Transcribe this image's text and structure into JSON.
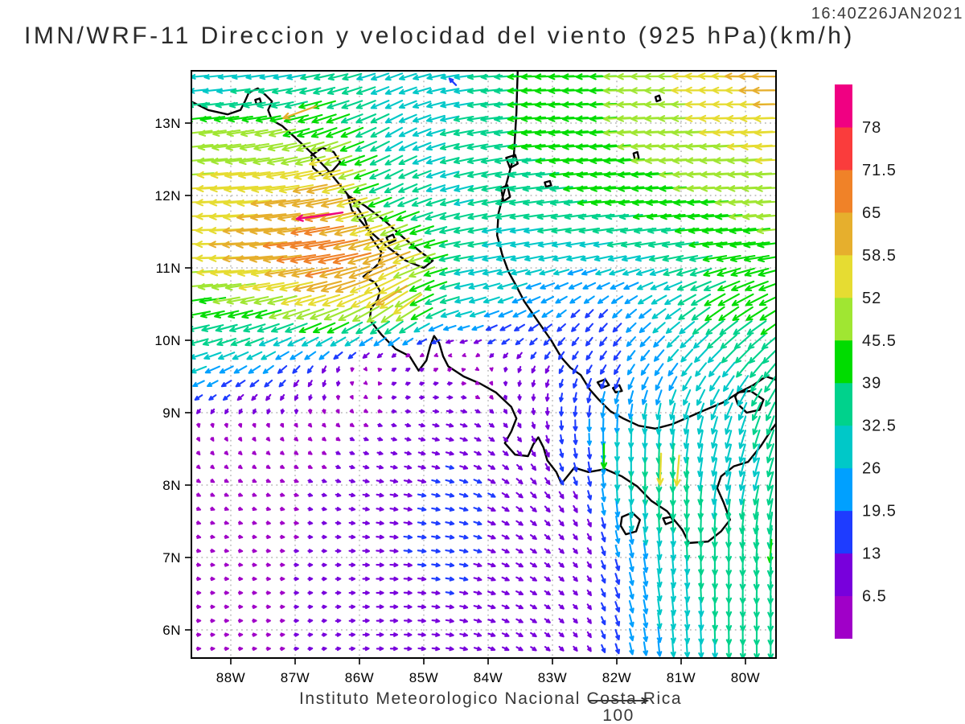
{
  "header": {
    "title": "IMN/WRF-11 Direccion y velocidad del viento (925 hPa)(km/h)",
    "timestamp": "16:40Z26JAN2021"
  },
  "footer": {
    "credit": "Instituto Meteorologico Nacional Costa Rica",
    "reference_label": "100"
  },
  "axes": {
    "x_ticks": [
      {
        "lon": -88,
        "label": "88W"
      },
      {
        "lon": -87,
        "label": "87W"
      },
      {
        "lon": -86,
        "label": "86W"
      },
      {
        "lon": -85,
        "label": "85W"
      },
      {
        "lon": -84,
        "label": "84W"
      },
      {
        "lon": -83,
        "label": "83W"
      },
      {
        "lon": -82,
        "label": "82W"
      },
      {
        "lon": -81,
        "label": "81W"
      },
      {
        "lon": -80,
        "label": "80W"
      }
    ],
    "y_ticks": [
      {
        "lat": 13,
        "label": "13N"
      },
      {
        "lat": 12,
        "label": "12N"
      },
      {
        "lat": 11,
        "label": "11N"
      },
      {
        "lat": 10,
        "label": "10N"
      },
      {
        "lat": 9,
        "label": "9N"
      },
      {
        "lat": 8,
        "label": "8N"
      },
      {
        "lat": 7,
        "label": "7N"
      },
      {
        "lat": 6,
        "label": "6N"
      }
    ]
  },
  "colorbar": {
    "units": "km/h",
    "levels": [
      6.5,
      13,
      19.5,
      26,
      32.5,
      39,
      45.5,
      52,
      58.5,
      65,
      71.5,
      78
    ],
    "level_labels": [
      "6.5",
      "13",
      "19.5",
      "26",
      "32.5",
      "39",
      "45.5",
      "52",
      "58.5",
      "65",
      "71.5",
      "78"
    ],
    "colors": [
      "#A000C8",
      "#7800DC",
      "#1E3CFF",
      "#00A0FF",
      "#00C8C8",
      "#00D28C",
      "#00DC00",
      "#A0E632",
      "#E6DC32",
      "#E6AF2D",
      "#F08228",
      "#FA3C3C",
      "#F00082"
    ]
  },
  "chart_data": {
    "type": "vector_field_map",
    "title": "IMN/WRF-11 Direccion y velocidad del viento (925 hPa)(km/h)",
    "units": "km/h",
    "pressure_level": "925 hPa",
    "lon_range": [
      -88.61,
      -79.53
    ],
    "lat_range": [
      5.61,
      13.72
    ],
    "grid_on": true,
    "reference_vector_kmh": 100,
    "control_grid": {
      "lons": [
        -88.6,
        -87.5,
        -86.5,
        -85.5,
        -84.5,
        -83.5,
        -82.5,
        -82.0,
        -81.3,
        -80.5,
        -79.5
      ],
      "lats": [
        13.7,
        12.8,
        12.0,
        11.2,
        10.4,
        9.6,
        8.8,
        8.0,
        7.2,
        6.4,
        5.6
      ],
      "speed_kmh": [
        [
          26,
          27,
          34,
          30,
          30,
          40,
          44,
          46,
          50,
          56,
          66
        ],
        [
          48,
          48,
          46,
          32,
          33,
          40,
          44,
          46,
          48,
          52,
          54
        ],
        [
          54,
          58,
          62,
          34,
          32,
          34,
          40,
          42,
          44,
          46,
          50
        ],
        [
          56,
          64,
          72,
          60,
          34,
          30,
          30,
          31,
          34,
          40,
          44
        ],
        [
          40,
          45,
          52,
          55,
          30,
          24,
          18,
          20,
          28,
          40,
          42
        ],
        [
          28,
          22,
          12,
          7,
          6,
          10,
          16,
          18,
          24,
          30,
          36
        ],
        [
          6,
          6,
          6,
          7,
          12,
          8,
          20,
          26,
          30,
          30,
          34
        ],
        [
          6,
          6,
          7,
          12,
          14,
          13,
          14,
          30,
          40,
          30,
          33
        ],
        [
          6,
          6,
          7,
          13,
          14,
          12,
          10,
          20,
          30,
          36,
          40
        ],
        [
          6,
          6,
          7,
          12,
          13,
          12,
          9,
          18,
          27,
          34,
          38
        ],
        [
          6,
          6,
          7,
          11,
          12,
          11,
          9,
          17,
          26,
          32,
          36
        ]
      ],
      "direction_to_deg": [
        [
          185,
          188,
          192,
          200,
          188,
          182,
          182,
          181,
          180,
          178,
          180
        ],
        [
          186,
          190,
          200,
          210,
          192,
          186,
          184,
          184,
          183,
          183,
          183
        ],
        [
          182,
          186,
          192,
          205,
          195,
          188,
          186,
          185,
          184,
          183,
          183
        ],
        [
          180,
          185,
          190,
          200,
          190,
          190,
          190,
          190,
          190,
          188,
          188
        ],
        [
          190,
          195,
          200,
          215,
          195,
          205,
          225,
          222,
          215,
          215,
          210
        ],
        [
          200,
          215,
          245,
          30,
          25,
          250,
          240,
          238,
          235,
          230,
          230
        ],
        [
          290,
          300,
          315,
          345,
          345,
          300,
          270,
          268,
          265,
          255,
          250
        ],
        [
          330,
          340,
          345,
          350,
          345,
          320,
          290,
          272,
          270,
          260,
          255
        ],
        [
          350,
          355,
          0,
          355,
          350,
          330,
          305,
          285,
          275,
          270,
          265
        ],
        [
          0,
          0,
          5,
          0,
          350,
          335,
          310,
          290,
          278,
          272,
          268
        ],
        [
          5,
          5,
          10,
          0,
          350,
          330,
          305,
          288,
          275,
          272,
          270
        ]
      ]
    },
    "extra_vectors": [
      {
        "lon": -86.62,
        "lat": 11.72,
        "speed": 80,
        "dir": 188
      },
      {
        "lon": -86.93,
        "lat": 13.15,
        "speed": 60,
        "dir": 200
      },
      {
        "lon": -85.5,
        "lat": 10.62,
        "speed": 62,
        "dir": 212
      },
      {
        "lon": -85.25,
        "lat": 10.5,
        "speed": 58,
        "dir": 215
      },
      {
        "lon": -84.55,
        "lat": 13.57,
        "speed": 16,
        "dir": 135
      },
      {
        "lon": -82.2,
        "lat": 8.4,
        "speed": 42,
        "dir": 270
      },
      {
        "lon": -81.32,
        "lat": 8.22,
        "speed": 54,
        "dir": 268
      },
      {
        "lon": -81.05,
        "lat": 8.2,
        "speed": 52,
        "dir": 265
      }
    ]
  },
  "geo": {
    "open_coastlines": {
      "pacific_mainland": [
        [
          -88.62,
          13.3
        ],
        [
          -88.35,
          13.18
        ],
        [
          -88.05,
          13.12
        ],
        [
          -87.85,
          13.18
        ],
        [
          -87.78,
          13.3
        ],
        [
          -87.72,
          13.42
        ],
        [
          -87.58,
          13.48
        ],
        [
          -87.45,
          13.38
        ],
        [
          -87.36,
          13.3
        ],
        [
          -87.42,
          13.18
        ],
        [
          -87.36,
          13.04
        ],
        [
          -87.2,
          12.96
        ],
        [
          -87.0,
          12.8
        ],
        [
          -86.76,
          12.6
        ],
        [
          -86.52,
          12.38
        ],
        [
          -86.3,
          12.14
        ],
        [
          -86.1,
          11.92
        ],
        [
          -85.92,
          11.68
        ],
        [
          -85.82,
          11.42
        ],
        [
          -85.66,
          11.22
        ],
        [
          -85.7,
          11.06
        ],
        [
          -85.82,
          10.96
        ],
        [
          -85.94,
          10.88
        ],
        [
          -85.76,
          10.8
        ],
        [
          -85.68,
          10.68
        ],
        [
          -85.72,
          10.56
        ],
        [
          -85.82,
          10.44
        ],
        [
          -85.84,
          10.28
        ],
        [
          -85.66,
          10.08
        ],
        [
          -85.44,
          9.88
        ],
        [
          -85.22,
          9.78
        ],
        [
          -85.08,
          9.58
        ],
        [
          -84.96,
          9.72
        ],
        [
          -84.9,
          9.92
        ],
        [
          -84.84,
          10.06
        ],
        [
          -84.76,
          9.96
        ],
        [
          -84.7,
          9.78
        ],
        [
          -84.62,
          9.64
        ],
        [
          -84.38,
          9.5
        ],
        [
          -84.12,
          9.4
        ],
        [
          -83.88,
          9.28
        ],
        [
          -83.64,
          9.08
        ],
        [
          -83.56,
          8.92
        ],
        [
          -83.64,
          8.74
        ],
        [
          -83.74,
          8.58
        ],
        [
          -83.58,
          8.42
        ],
        [
          -83.38,
          8.4
        ],
        [
          -83.3,
          8.56
        ],
        [
          -83.22,
          8.66
        ],
        [
          -83.14,
          8.52
        ],
        [
          -83.08,
          8.34
        ],
        [
          -82.94,
          8.18
        ],
        [
          -82.86,
          8.02
        ],
        [
          -82.66,
          8.24
        ],
        [
          -82.44,
          8.18
        ],
        [
          -82.18,
          8.22
        ],
        [
          -81.92,
          8.12
        ],
        [
          -81.68,
          7.98
        ],
        [
          -81.46,
          7.78
        ],
        [
          -81.22,
          7.64
        ],
        [
          -80.98,
          7.38
        ],
        [
          -80.88,
          7.2
        ],
        [
          -80.58,
          7.22
        ],
        [
          -80.38,
          7.36
        ],
        [
          -80.24,
          7.52
        ],
        [
          -80.34,
          7.76
        ],
        [
          -80.44,
          7.96
        ],
        [
          -80.38,
          8.12
        ],
        [
          -80.18,
          8.26
        ],
        [
          -79.96,
          8.32
        ],
        [
          -79.76,
          8.54
        ],
        [
          -79.6,
          8.76
        ],
        [
          -79.48,
          8.9
        ]
      ],
      "caribbean_mainland": [
        [
          -79.48,
          9.44
        ],
        [
          -79.68,
          9.5
        ],
        [
          -79.88,
          9.38
        ],
        [
          -80.1,
          9.28
        ],
        [
          -80.35,
          9.14
        ],
        [
          -80.62,
          9.04
        ],
        [
          -80.88,
          8.94
        ],
        [
          -81.14,
          8.84
        ],
        [
          -81.4,
          8.78
        ],
        [
          -81.66,
          8.82
        ],
        [
          -81.9,
          8.92
        ],
        [
          -82.1,
          9.02
        ],
        [
          -82.28,
          9.18
        ],
        [
          -82.42,
          9.32
        ],
        [
          -82.56,
          9.52
        ],
        [
          -82.72,
          9.62
        ],
        [
          -82.86,
          9.76
        ],
        [
          -83.02,
          10.0
        ],
        [
          -83.24,
          10.28
        ],
        [
          -83.44,
          10.54
        ],
        [
          -83.58,
          10.78
        ],
        [
          -83.68,
          10.94
        ],
        [
          -83.78,
          11.18
        ],
        [
          -83.86,
          11.45
        ],
        [
          -83.84,
          11.75
        ],
        [
          -83.76,
          12.02
        ],
        [
          -83.68,
          12.28
        ],
        [
          -83.6,
          12.55
        ],
        [
          -83.58,
          12.85
        ],
        [
          -83.56,
          13.15
        ],
        [
          -83.55,
          13.45
        ],
        [
          -83.54,
          13.73
        ]
      ]
    },
    "closed_features": {
      "lake_managua": [
        [
          -86.75,
          12.55
        ],
        [
          -86.58,
          12.66
        ],
        [
          -86.4,
          12.6
        ],
        [
          -86.3,
          12.46
        ],
        [
          -86.42,
          12.34
        ],
        [
          -86.58,
          12.28
        ],
        [
          -86.72,
          12.38
        ]
      ],
      "lake_nicaragua": [
        [
          -86.18,
          12.0
        ],
        [
          -85.92,
          11.86
        ],
        [
          -85.62,
          11.66
        ],
        [
          -85.32,
          11.42
        ],
        [
          -85.05,
          11.22
        ],
        [
          -84.86,
          11.1
        ],
        [
          -85.0,
          11.0
        ],
        [
          -85.28,
          11.1
        ],
        [
          -85.58,
          11.3
        ],
        [
          -85.88,
          11.54
        ],
        [
          -86.12,
          11.8
        ]
      ],
      "ometepe_island": [
        [
          -85.58,
          11.42
        ],
        [
          -85.48,
          11.46
        ],
        [
          -85.44,
          11.38
        ],
        [
          -85.54,
          11.34
        ]
      ],
      "lake_gatun": [
        [
          -80.12,
          9.28
        ],
        [
          -79.92,
          9.3
        ],
        [
          -79.72,
          9.18
        ],
        [
          -79.78,
          9.04
        ],
        [
          -79.98,
          9.0
        ],
        [
          -80.12,
          9.12
        ],
        [
          -80.16,
          9.22
        ]
      ],
      "pearl_lagoon": [
        [
          -83.72,
          12.52
        ],
        [
          -83.58,
          12.56
        ],
        [
          -83.54,
          12.44
        ],
        [
          -83.66,
          12.38
        ]
      ],
      "bluefields_bay": [
        [
          -83.8,
          12.1
        ],
        [
          -83.7,
          12.14
        ],
        [
          -83.66,
          11.98
        ],
        [
          -83.76,
          11.92
        ]
      ],
      "coiba_island": [
        [
          -81.92,
          7.56
        ],
        [
          -81.76,
          7.62
        ],
        [
          -81.64,
          7.52
        ],
        [
          -81.7,
          7.36
        ],
        [
          -81.86,
          7.32
        ],
        [
          -81.94,
          7.44
        ]
      ],
      "cebaco_island": [
        [
          -81.28,
          7.54
        ],
        [
          -81.16,
          7.56
        ],
        [
          -81.12,
          7.5
        ],
        [
          -81.24,
          7.46
        ]
      ],
      "bocas_island_1": [
        [
          -82.3,
          9.42
        ],
        [
          -82.18,
          9.46
        ],
        [
          -82.12,
          9.38
        ],
        [
          -82.24,
          9.34
        ]
      ],
      "bocas_island_2": [
        [
          -82.06,
          9.34
        ],
        [
          -81.96,
          9.38
        ],
        [
          -81.92,
          9.3
        ],
        [
          -82.02,
          9.28
        ]
      ],
      "providencia_island": [
        [
          -81.4,
          13.36
        ],
        [
          -81.34,
          13.38
        ],
        [
          -81.32,
          13.32
        ],
        [
          -81.38,
          13.3
        ]
      ],
      "san_andres_island": [
        [
          -81.74,
          12.58
        ],
        [
          -81.68,
          12.6
        ],
        [
          -81.66,
          12.52
        ],
        [
          -81.72,
          12.5
        ]
      ],
      "corn_island": [
        [
          -83.12,
          12.18
        ],
        [
          -83.04,
          12.2
        ],
        [
          -83.02,
          12.14
        ],
        [
          -83.1,
          12.12
        ]
      ],
      "fonseca_island": [
        [
          -87.62,
          13.32
        ],
        [
          -87.55,
          13.34
        ],
        [
          -87.53,
          13.28
        ],
        [
          -87.6,
          13.26
        ]
      ]
    }
  }
}
